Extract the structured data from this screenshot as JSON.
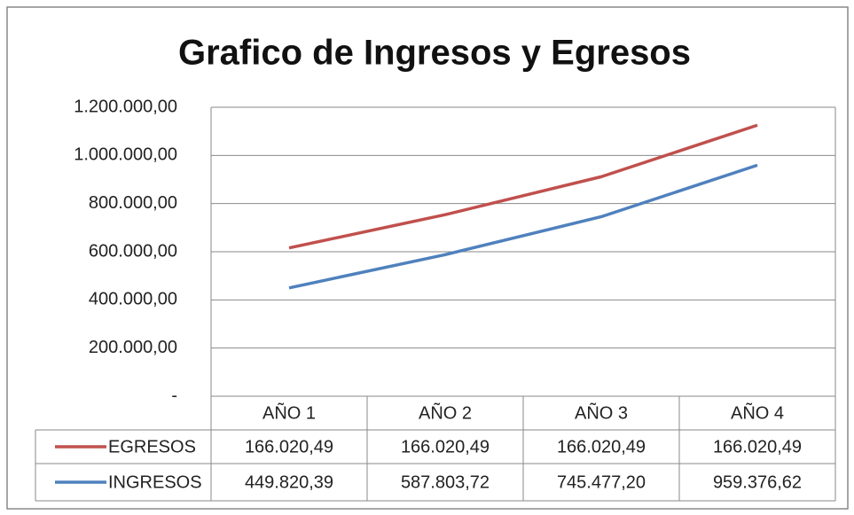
{
  "chart_data": {
    "type": "line",
    "title": "Grafico de Ingresos y Egresos",
    "stacked": true,
    "grid": true,
    "categories": [
      "AÑO 1",
      "AÑO 2",
      "AÑO 3",
      "AÑO 4"
    ],
    "series": [
      {
        "name": "EGRESOS",
        "color": "#c0504d",
        "values": [
          166020.49,
          166020.49,
          166020.49,
          166020.49
        ],
        "value_labels": [
          "166.020,49",
          "166.020,49",
          "166.020,49",
          "166.020,49"
        ]
      },
      {
        "name": "INGRESOS",
        "color": "#4f81bd",
        "values": [
          449820.39,
          587803.72,
          745477.2,
          959376.62
        ],
        "value_labels": [
          "449.820,39",
          "587.803,72",
          "745.477,20",
          "959.376,62"
        ]
      }
    ],
    "ylim": [
      0,
      1200000
    ],
    "yticks": [
      {
        "value": 0,
        "label": "-"
      },
      {
        "value": 200000,
        "label": "200.000,00"
      },
      {
        "value": 400000,
        "label": "400.000,00"
      },
      {
        "value": 600000,
        "label": "600.000,00"
      },
      {
        "value": 800000,
        "label": "800.000,00"
      },
      {
        "value": 1000000,
        "label": "1.000.000,00"
      },
      {
        "value": 1200000,
        "label": "1.200.000,00"
      }
    ]
  }
}
